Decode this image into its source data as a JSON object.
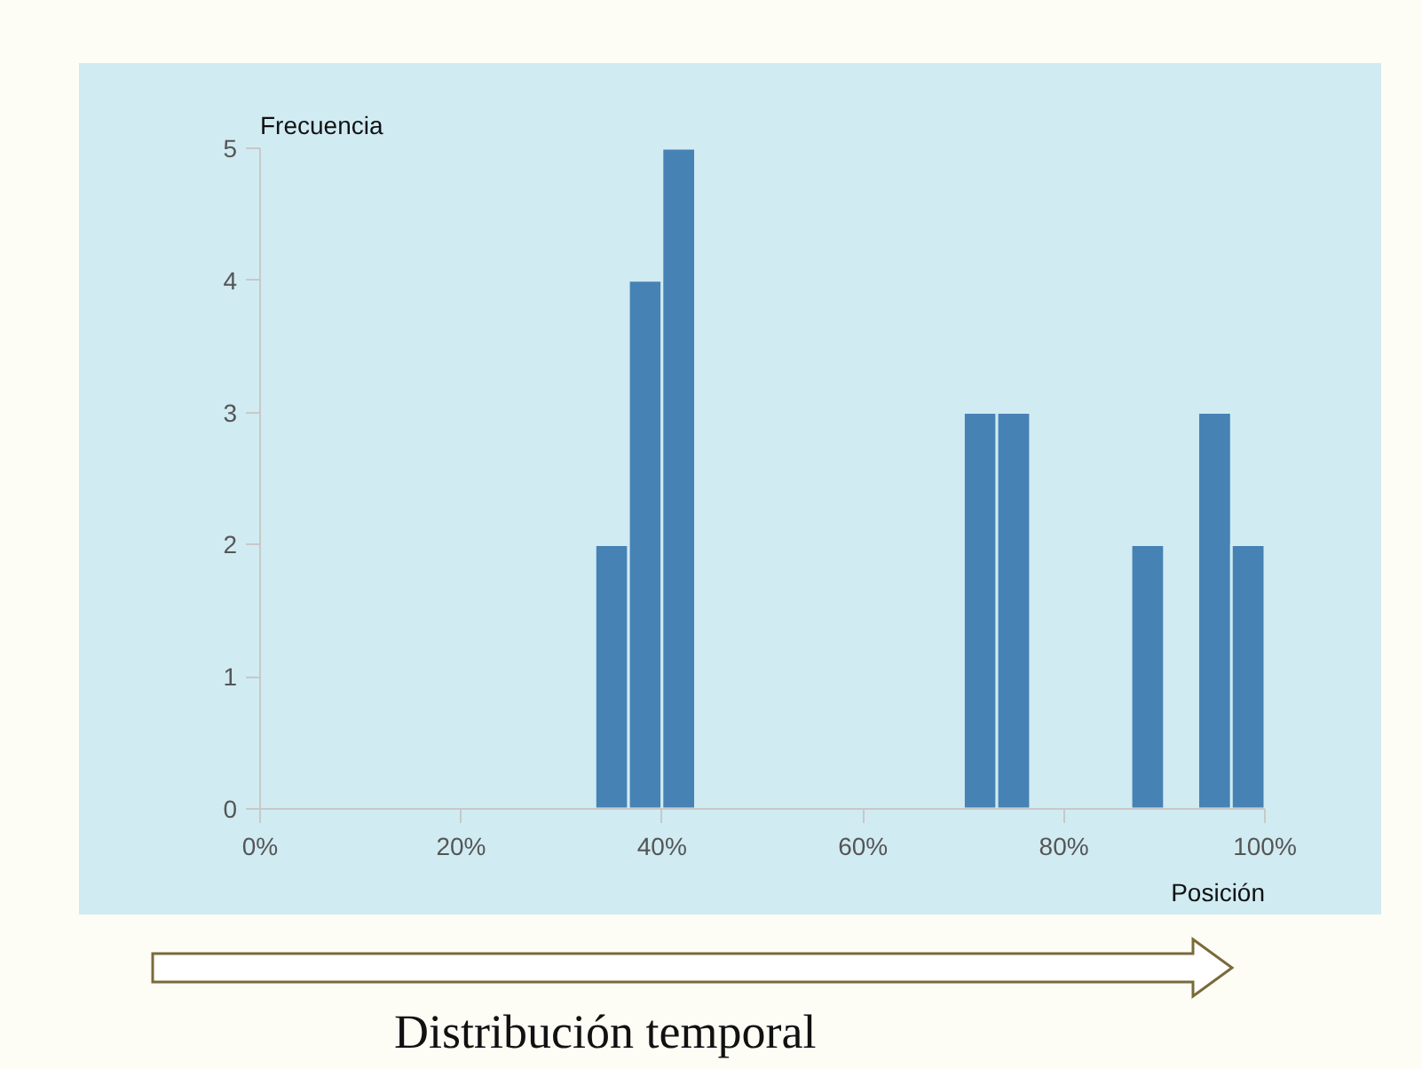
{
  "chart_data": {
    "type": "histogram",
    "xlabel": "Posición",
    "ylabel": "Frecuencia",
    "bins": [
      0,
      3.33,
      6.67,
      10,
      13.33,
      16.67,
      20,
      23.33,
      26.67,
      30,
      33.33,
      36.67,
      40,
      43.33,
      46.67,
      50,
      53.33,
      56.67,
      60,
      63.33,
      66.67,
      70,
      73.33,
      76.67,
      80,
      83.33,
      86.67,
      90,
      93.33,
      96.67,
      100
    ],
    "values": [
      0,
      0,
      0,
      0,
      0,
      0,
      0,
      0,
      0,
      0,
      2,
      4,
      5,
      0,
      0,
      0,
      0,
      0,
      0,
      0,
      0,
      3,
      3,
      0,
      0,
      0,
      2,
      0,
      3,
      2
    ],
    "color": "#4682b4",
    "xlim": [
      0,
      100
    ],
    "xticks": [
      {
        "value": 0,
        "label": "0%"
      },
      {
        "value": 20,
        "label": "20%"
      },
      {
        "value": 40,
        "label": "40%"
      },
      {
        "value": 60,
        "label": "60%"
      },
      {
        "value": 80,
        "label": "80%"
      },
      {
        "value": 100,
        "label": "100%"
      }
    ],
    "ylim": [
      0,
      5
    ],
    "yticks": [
      0,
      1,
      2,
      3,
      4,
      5
    ],
    "grid": false,
    "annotations": [
      "Distribución temporal"
    ]
  }
}
